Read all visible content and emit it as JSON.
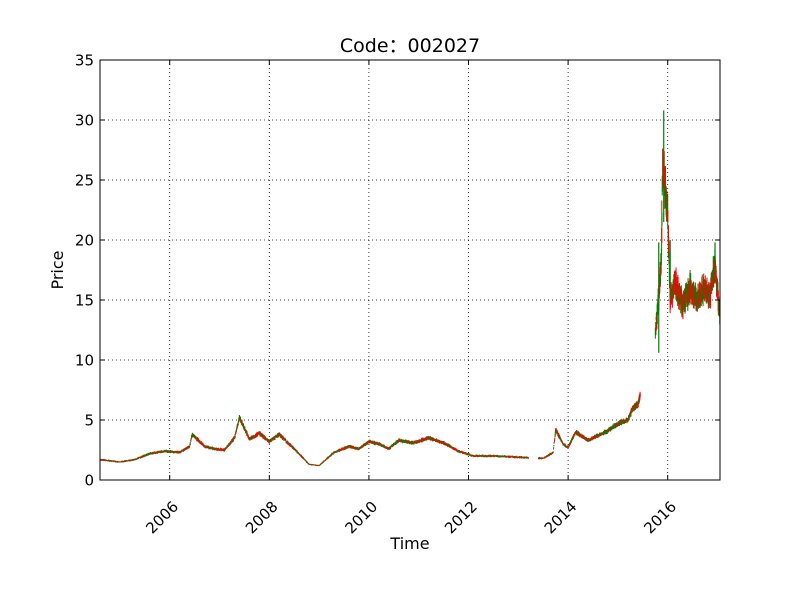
{
  "chart_data": {
    "type": "candlestick",
    "title": "Code：002027",
    "xlabel": "Time",
    "ylabel": "Price",
    "xlim": [
      2004.6,
      2017.05
    ],
    "ylim": [
      0,
      35
    ],
    "grid": true,
    "x_ticks": [
      2006,
      2008,
      2010,
      2012,
      2014,
      2016
    ],
    "x_tick_labels": [
      "2006",
      "2008",
      "2010",
      "2012",
      "2014",
      "2016"
    ],
    "y_ticks": [
      0,
      5,
      10,
      15,
      20,
      25,
      30,
      35
    ],
    "y_tick_labels": [
      "0",
      "5",
      "10",
      "15",
      "20",
      "25",
      "30",
      "35"
    ],
    "colors": {
      "up": "#ff0000",
      "down": "#008000",
      "grid": "#000000"
    },
    "price_path": [
      {
        "t": 2004.6,
        "p": 1.7
      },
      {
        "t": 2005.0,
        "p": 1.5
      },
      {
        "t": 2005.3,
        "p": 1.7
      },
      {
        "t": 2005.6,
        "p": 2.2
      },
      {
        "t": 2005.9,
        "p": 2.4
      },
      {
        "t": 2006.2,
        "p": 2.3
      },
      {
        "t": 2006.4,
        "p": 2.8
      },
      {
        "t": 2006.45,
        "p": 3.8
      },
      {
        "t": 2006.7,
        "p": 2.8
      },
      {
        "t": 2006.9,
        "p": 2.6
      },
      {
        "t": 2007.1,
        "p": 2.5
      },
      {
        "t": 2007.3,
        "p": 3.5
      },
      {
        "t": 2007.4,
        "p": 5.2
      },
      {
        "t": 2007.6,
        "p": 3.4
      },
      {
        "t": 2007.8,
        "p": 3.9
      },
      {
        "t": 2008.0,
        "p": 3.2
      },
      {
        "t": 2008.2,
        "p": 3.8
      },
      {
        "t": 2008.5,
        "p": 2.6
      },
      {
        "t": 2008.8,
        "p": 1.3
      },
      {
        "t": 2009.0,
        "p": 1.2
      },
      {
        "t": 2009.3,
        "p": 2.3
      },
      {
        "t": 2009.6,
        "p": 2.8
      },
      {
        "t": 2009.8,
        "p": 2.6
      },
      {
        "t": 2010.0,
        "p": 3.2
      },
      {
        "t": 2010.2,
        "p": 3.0
      },
      {
        "t": 2010.4,
        "p": 2.6
      },
      {
        "t": 2010.6,
        "p": 3.3
      },
      {
        "t": 2010.9,
        "p": 3.1
      },
      {
        "t": 2011.2,
        "p": 3.5
      },
      {
        "t": 2011.5,
        "p": 3.1
      },
      {
        "t": 2011.8,
        "p": 2.4
      },
      {
        "t": 2012.1,
        "p": 2.0
      },
      {
        "t": 2012.5,
        "p": 2.0
      },
      {
        "t": 2013.0,
        "p": 1.9
      },
      {
        "t": 2013.5,
        "p": 1.8
      },
      {
        "t": 2013.7,
        "p": 2.3
      },
      {
        "t": 2013.75,
        "p": 4.2
      },
      {
        "t": 2013.9,
        "p": 3.0
      },
      {
        "t": 2014.0,
        "p": 2.7
      },
      {
        "t": 2014.15,
        "p": 4.0
      },
      {
        "t": 2014.4,
        "p": 3.3
      },
      {
        "t": 2014.6,
        "p": 3.7
      },
      {
        "t": 2014.8,
        "p": 4.1
      },
      {
        "t": 2015.0,
        "p": 4.7
      },
      {
        "t": 2015.2,
        "p": 5.0
      },
      {
        "t": 2015.3,
        "p": 6.0
      },
      {
        "t": 2015.4,
        "p": 6.3
      },
      {
        "t": 2015.75,
        "p": 12.0
      },
      {
        "t": 2015.8,
        "p": 14.5
      },
      {
        "t": 2015.87,
        "p": 18.0
      },
      {
        "t": 2015.9,
        "p": 27.0
      },
      {
        "t": 2015.95,
        "p": 24.5
      },
      {
        "t": 2016.0,
        "p": 22.0
      },
      {
        "t": 2016.05,
        "p": 15.0
      },
      {
        "t": 2016.15,
        "p": 16.5
      },
      {
        "t": 2016.3,
        "p": 14.5
      },
      {
        "t": 2016.45,
        "p": 16.0
      },
      {
        "t": 2016.6,
        "p": 15.0
      },
      {
        "t": 2016.75,
        "p": 16.0
      },
      {
        "t": 2016.85,
        "p": 15.5
      },
      {
        "t": 2016.95,
        "p": 18.0
      },
      {
        "t": 2017.05,
        "p": 13.5
      }
    ],
    "price_gaps": [
      [
        2013.2,
        2013.4
      ],
      [
        2015.45,
        2015.75
      ]
    ],
    "price_spikes": [
      {
        "t": 2007.4,
        "high": 5.4
      },
      {
        "t": 2015.82,
        "high": 19.8,
        "low": 10.6
      },
      {
        "t": 2015.92,
        "high": 30.8,
        "low": 21.5
      },
      {
        "t": 2016.05,
        "high": 20.0
      },
      {
        "t": 2016.95,
        "high": 19.8
      }
    ]
  }
}
